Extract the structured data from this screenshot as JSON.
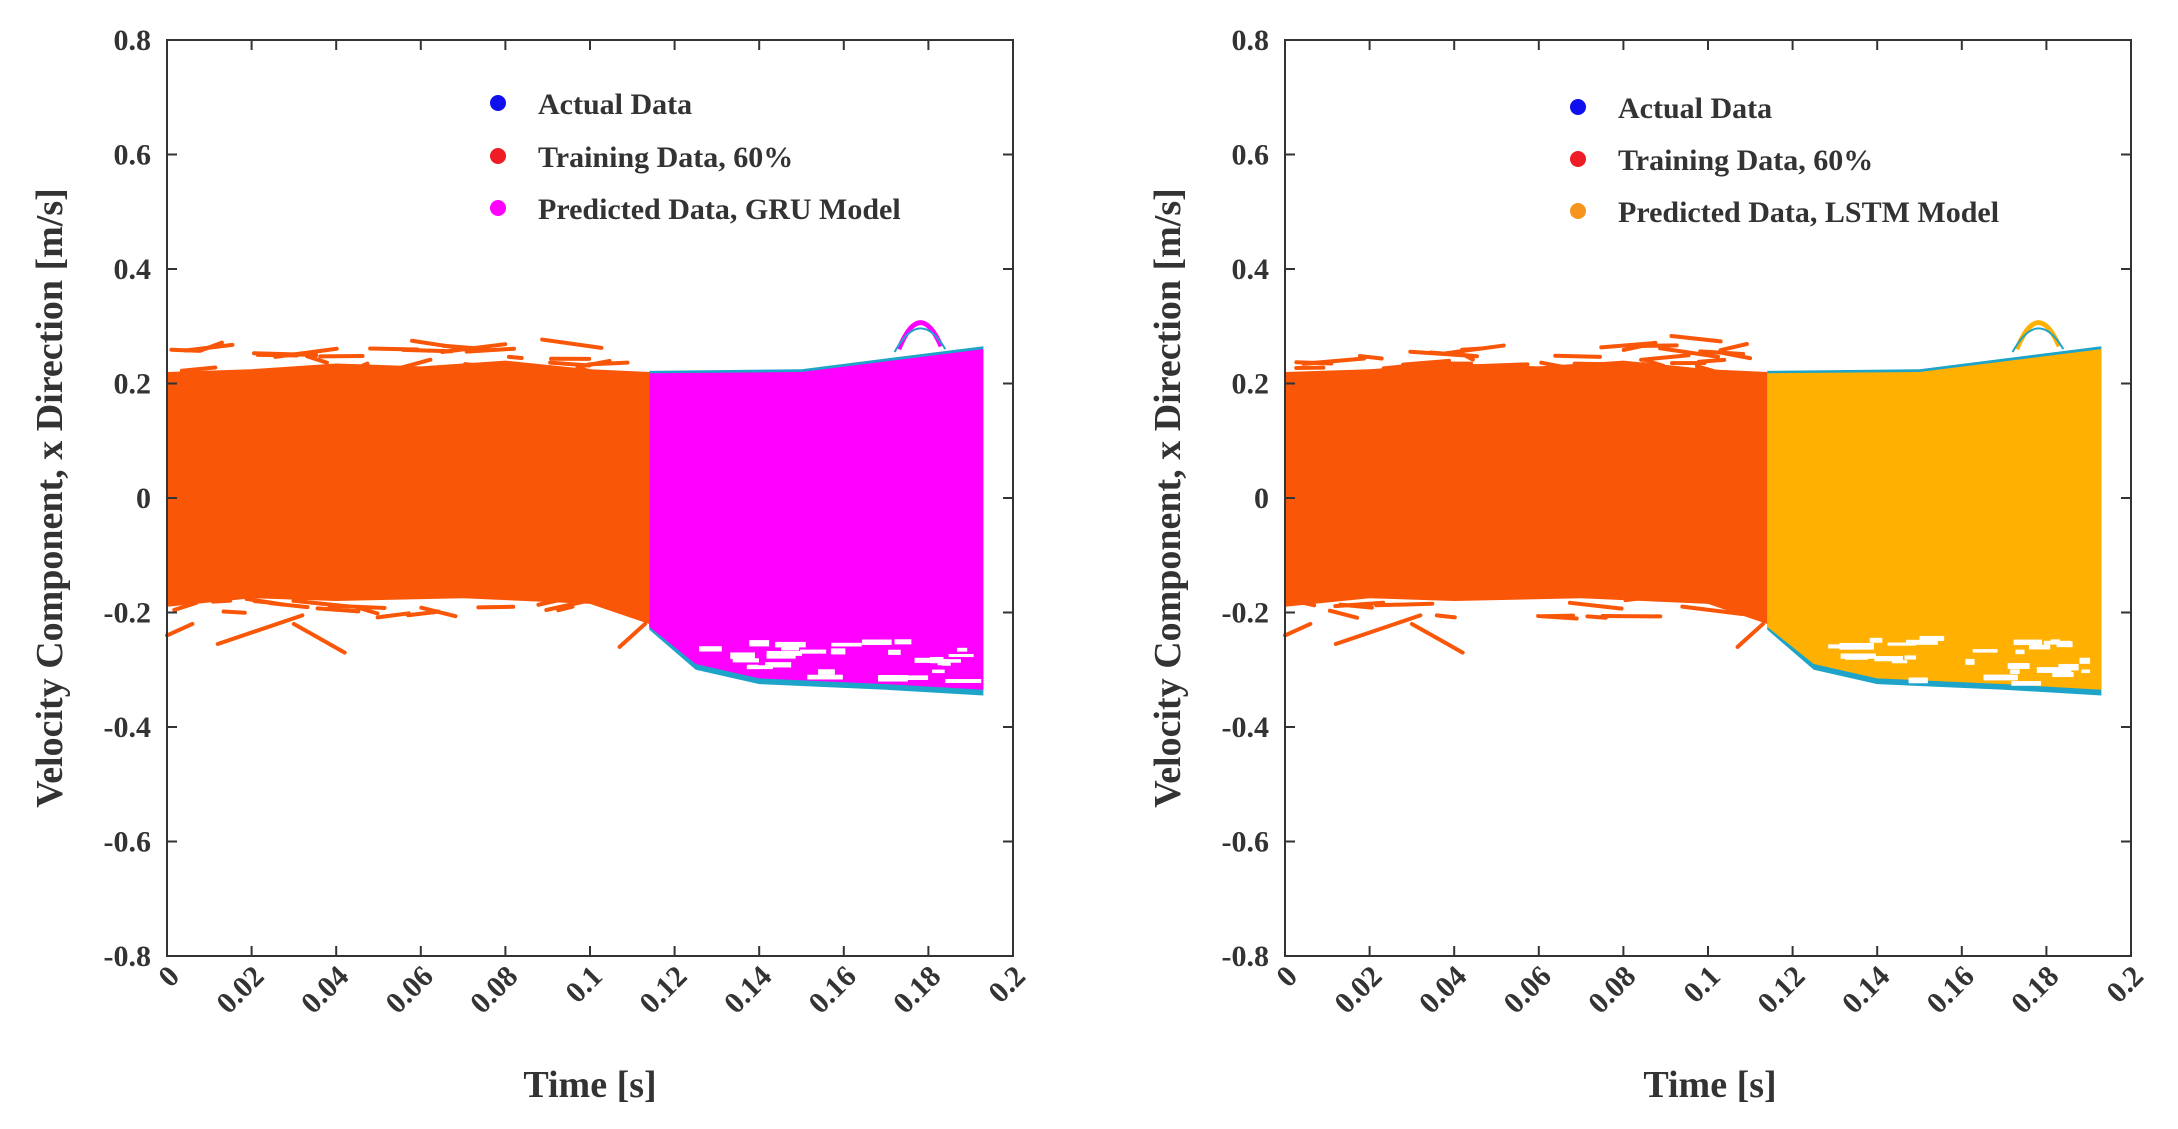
{
  "chart_data": [
    {
      "type": "scatter",
      "panel": "left",
      "xlabel": "Time [s]",
      "ylabel": "Velocity Component, x Direction [m/s]",
      "xlim": [
        0,
        0.2
      ],
      "ylim": [
        -0.8,
        0.8
      ],
      "x_ticks": [
        "0",
        "0.02",
        "0.04",
        "0.06",
        "0.08",
        "0.1",
        "0.12",
        "0.14",
        "0.16",
        "0.18",
        "0.2"
      ],
      "y_ticks": [
        "0.8",
        "0.6",
        "0.4",
        "0.2",
        "0",
        "-0.2",
        "-0.4",
        "-0.6",
        "-0.8"
      ],
      "legend": [
        {
          "label": "Actual Data",
          "color": "#1010ee"
        },
        {
          "label": "Training Data, 60%",
          "color": "#ee1c24"
        },
        {
          "label": "Predicted Data, GRU Model",
          "color": "#ff00ff"
        }
      ],
      "series": [
        {
          "name": "Actual Data",
          "color": "#1da4c8",
          "x_range": [
            0.114,
            0.193
          ],
          "band": [
            -0.35,
            0.32
          ]
        },
        {
          "name": "Training Data, 60%",
          "color": "#f95608",
          "x_range": [
            0.0,
            0.114
          ],
          "band": [
            -0.27,
            0.35
          ]
        },
        {
          "name": "Predicted Data, GRU Model",
          "color": "#ff00ff",
          "x_range": [
            0.114,
            0.193
          ],
          "band": [
            -0.35,
            0.32
          ]
        }
      ],
      "split_time": 0.114
    },
    {
      "type": "scatter",
      "panel": "right",
      "xlabel": "Time [s]",
      "ylabel": "Velocity Component, x Direction [m/s]",
      "xlim": [
        0,
        0.2
      ],
      "ylim": [
        -0.8,
        0.8
      ],
      "x_ticks": [
        "0",
        "0.02",
        "0.04",
        "0.06",
        "0.08",
        "0.1",
        "0.12",
        "0.14",
        "0.16",
        "0.18",
        "0.2"
      ],
      "y_ticks": [
        "0.8",
        "0.6",
        "0.4",
        "0.2",
        "0",
        "-0.2",
        "-0.4",
        "-0.6",
        "-0.8"
      ],
      "legend": [
        {
          "label": "Actual Data",
          "color": "#1010ee"
        },
        {
          "label": "Training Data, 60%",
          "color": "#ee1c24"
        },
        {
          "label": "Predicted Data, LSTM Model",
          "color": "#f7941d"
        }
      ],
      "series": [
        {
          "name": "Actual Data",
          "color": "#1da4c8",
          "x_range": [
            0.114,
            0.193
          ],
          "band": [
            -0.35,
            0.32
          ]
        },
        {
          "name": "Training Data, 60%",
          "color": "#f95608",
          "x_range": [
            0.0,
            0.114
          ],
          "band": [
            -0.27,
            0.35
          ]
        },
        {
          "name": "Predicted Data, LSTM Model",
          "color": "#ffb000",
          "x_range": [
            0.114,
            0.193
          ],
          "band": [
            -0.35,
            0.32
          ]
        }
      ],
      "split_time": 0.114
    }
  ]
}
